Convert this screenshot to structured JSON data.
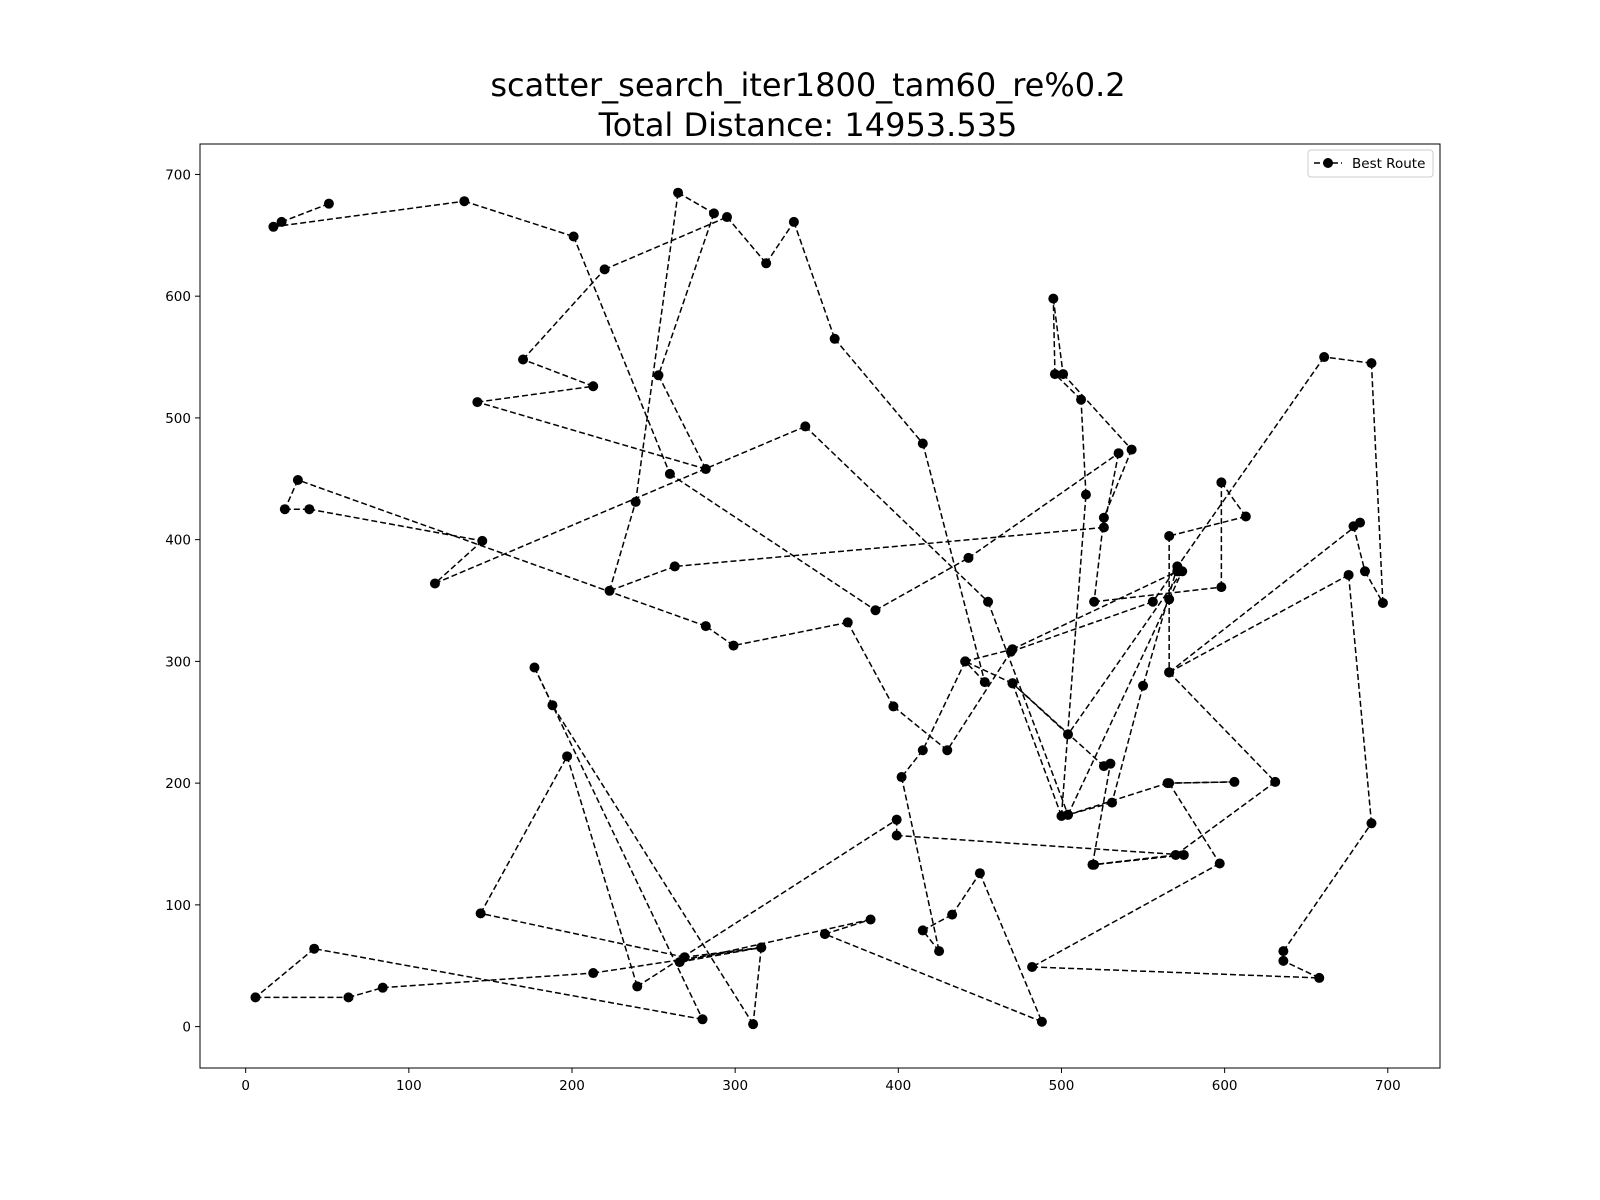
{
  "chart_data": {
    "type": "line",
    "title_lines": [
      "scatter_search_iter1800_tam60_re%0.2",
      "Total Distance: 14953.535"
    ],
    "xlabel": "",
    "ylabel": "",
    "xlim": [
      -28,
      732
    ],
    "ylim": [
      -34,
      725
    ],
    "xticks": [
      0,
      100,
      200,
      300,
      400,
      500,
      600,
      700
    ],
    "yticks": [
      0,
      100,
      200,
      300,
      400,
      500,
      600,
      700
    ],
    "grid": false,
    "legend_position": "top-right",
    "line_color": "#000000",
    "line_style": "dashed",
    "marker": "circle",
    "series": [
      {
        "name": "Best Route",
        "points": [
          [
            51,
            676
          ],
          [
            22,
            661
          ],
          [
            17,
            657
          ],
          [
            134,
            678
          ],
          [
            201,
            649
          ],
          [
            260,
            454
          ],
          [
            386,
            342
          ],
          [
            443,
            385
          ],
          [
            535,
            471
          ],
          [
            526,
            410
          ],
          [
            263,
            378
          ],
          [
            223,
            358
          ],
          [
            239,
            431
          ],
          [
            265,
            685
          ],
          [
            287,
            668
          ],
          [
            253,
            535
          ],
          [
            282,
            458
          ],
          [
            142,
            513
          ],
          [
            213,
            526
          ],
          [
            170,
            548
          ],
          [
            220,
            622
          ],
          [
            295,
            665
          ],
          [
            319,
            627
          ],
          [
            336,
            661
          ],
          [
            361,
            565
          ],
          [
            415,
            479
          ],
          [
            453,
            283
          ],
          [
            441,
            300
          ],
          [
            470,
            310
          ],
          [
            571,
            374
          ],
          [
            571,
            378
          ],
          [
            550,
            280
          ],
          [
            531,
            184
          ],
          [
            504,
            174
          ],
          [
            566,
            351
          ],
          [
            574,
            374
          ],
          [
            504,
            240
          ],
          [
            470,
            282
          ],
          [
            500,
            173
          ],
          [
            515,
            437
          ],
          [
            512,
            515
          ],
          [
            496,
            536
          ],
          [
            495,
            598
          ],
          [
            501,
            536
          ],
          [
            543,
            474
          ],
          [
            526,
            418
          ],
          [
            520,
            349
          ],
          [
            598,
            361
          ],
          [
            598,
            447
          ],
          [
            613,
            419
          ],
          [
            566,
            403
          ],
          [
            566,
            291
          ],
          [
            683,
            414
          ],
          [
            679,
            411
          ],
          [
            686,
            374
          ],
          [
            697,
            348
          ],
          [
            690,
            545
          ],
          [
            661,
            550
          ],
          [
            556,
            349
          ],
          [
            469,
            308
          ],
          [
            430,
            227
          ],
          [
            397,
            263
          ],
          [
            369,
            332
          ],
          [
            299,
            313
          ],
          [
            282,
            329
          ],
          [
            32,
            449
          ],
          [
            24,
            425
          ],
          [
            39,
            425
          ],
          [
            145,
            399
          ],
          [
            116,
            364
          ],
          [
            343,
            493
          ],
          [
            455,
            349
          ],
          [
            504,
            174
          ],
          [
            565,
            200
          ],
          [
            606,
            201
          ],
          [
            566,
            200
          ],
          [
            597,
            134
          ],
          [
            482,
            49
          ],
          [
            658,
            40
          ],
          [
            636,
            54
          ],
          [
            636,
            62
          ],
          [
            690,
            167
          ],
          [
            676,
            371
          ],
          [
            566,
            291
          ],
          [
            631,
            201
          ],
          [
            570,
            141
          ],
          [
            519,
            133
          ],
          [
            530,
            216
          ],
          [
            526,
            214
          ],
          [
            470,
            282
          ],
          [
            441,
            300
          ],
          [
            415,
            227
          ],
          [
            402,
            205
          ],
          [
            425,
            62
          ],
          [
            415,
            79
          ],
          [
            433,
            92
          ],
          [
            450,
            126
          ],
          [
            488,
            4
          ],
          [
            355,
            76
          ],
          [
            383,
            88
          ],
          [
            266,
            53
          ],
          [
            316,
            65
          ],
          [
            311,
            2
          ],
          [
            188,
            264
          ],
          [
            177,
            295
          ],
          [
            280,
            6
          ],
          [
            42,
            64
          ],
          [
            6,
            24
          ],
          [
            63,
            24
          ],
          [
            84,
            32
          ],
          [
            213,
            44
          ],
          [
            316,
            65
          ],
          [
            269,
            57
          ],
          [
            144,
            93
          ],
          [
            197,
            222
          ],
          [
            240,
            33
          ],
          [
            399,
            170
          ],
          [
            399,
            157
          ],
          [
            575,
            141
          ],
          [
            520,
            133
          ]
        ]
      }
    ],
    "legend_label": "Best Route"
  }
}
